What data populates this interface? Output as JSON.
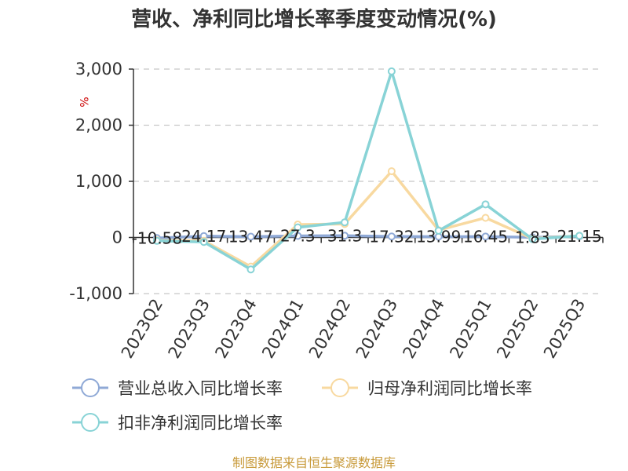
{
  "chart_data": {
    "type": "line",
    "title": "营收、净利同比增长率季度变动情况(%)",
    "ylabel": "%",
    "xlabel": "",
    "categories": [
      "2023Q2",
      "2023Q3",
      "2023Q4",
      "2024Q1",
      "2024Q2",
      "2024Q3",
      "2024Q4",
      "2025Q1",
      "2025Q2",
      "2025Q3"
    ],
    "ylim": [
      -1000,
      3000
    ],
    "yticks": [
      3000,
      2000,
      1000,
      0,
      -1000
    ],
    "ytick_labels": [
      "3,000",
      "2,000",
      "1,000",
      "0",
      "-1,000"
    ],
    "grid": true,
    "legend_position": "bottom",
    "series": [
      {
        "name": "营业总收入同比增长率",
        "color": "#8fa9d6",
        "values": [
          -10.58,
          24.17,
          13.47,
          27.3,
          31.3,
          17.32,
          13.99,
          16.45,
          1.83,
          21.15
        ],
        "labels": [
          "-10.58",
          "24.17",
          "13.47",
          "27.3",
          "31.3",
          "17.32",
          "13.99",
          "16.45",
          "1.83",
          "21.15"
        ]
      },
      {
        "name": "归母净利润同比增长率",
        "color": "#f8d9a0",
        "values": [
          -50,
          -60,
          -520,
          230,
          240,
          1180,
          130,
          350,
          -20,
          30
        ]
      },
      {
        "name": "扣非净利润同比增长率",
        "color": "#88d3d6",
        "values": [
          -60,
          -80,
          -570,
          180,
          270,
          2960,
          120,
          590,
          -30,
          30
        ]
      }
    ]
  },
  "footer": "制图数据来自恒生聚源数据库"
}
